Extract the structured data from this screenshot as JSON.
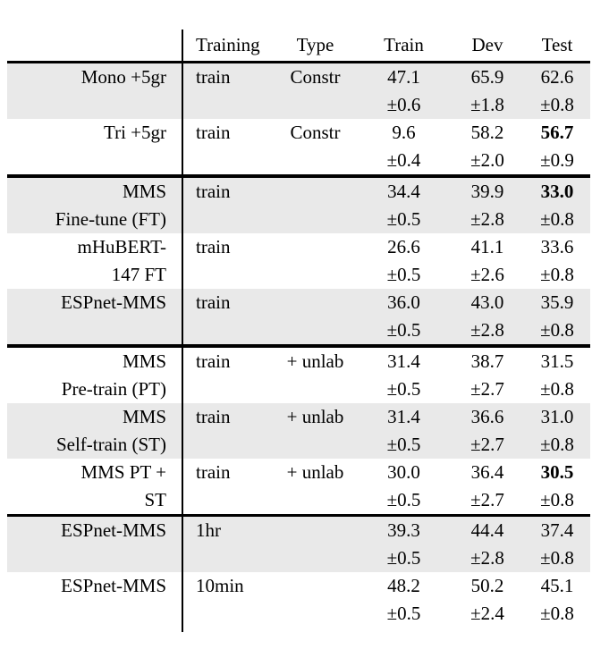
{
  "table": {
    "header": {
      "label": "",
      "training": "Training",
      "type": "Type",
      "train": "Train",
      "dev": "Dev",
      "test": "Test"
    },
    "sections": [
      {
        "rows": [
          {
            "label": [
              "Mono +5gr",
              ""
            ],
            "training": "train",
            "type": "Constr",
            "train": "47.1",
            "train_err": "±0.6",
            "dev": "65.9",
            "dev_err": "±1.8",
            "test": "62.6",
            "test_err": "±0.8",
            "bold": [],
            "shaded": true
          },
          {
            "label": [
              "Tri +5gr",
              ""
            ],
            "training": "train",
            "type": "Constr",
            "train": "9.6",
            "train_err": "±0.4",
            "dev": "58.2",
            "dev_err": "±2.0",
            "test": "56.7",
            "test_err": "±0.9",
            "bold": [
              "test"
            ],
            "shaded": false
          }
        ]
      },
      {
        "rows": [
          {
            "label": [
              "MMS",
              "Fine-tune (FT)"
            ],
            "training": "train",
            "type": "",
            "train": "34.4",
            "train_err": "±0.5",
            "dev": "39.9",
            "dev_err": "±2.8",
            "test": "33.0",
            "test_err": "±0.8",
            "bold": [
              "test"
            ],
            "shaded": true
          },
          {
            "label": [
              "mHuBERT-",
              "147 FT"
            ],
            "training": "train",
            "type": "",
            "train": "26.6",
            "train_err": "±0.5",
            "dev": "41.1",
            "dev_err": "±2.6",
            "test": "33.6",
            "test_err": "±0.8",
            "bold": [],
            "shaded": false
          },
          {
            "label": [
              "ESPnet-MMS",
              ""
            ],
            "training": "train",
            "type": "",
            "train": "36.0",
            "train_err": "±0.5",
            "dev": "43.0",
            "dev_err": "±2.8",
            "test": "35.9",
            "test_err": "±0.8",
            "bold": [],
            "shaded": true
          }
        ]
      },
      {
        "rows": [
          {
            "label": [
              "MMS",
              "Pre-train (PT)"
            ],
            "training": "train",
            "type": "+ unlab",
            "train": "31.4",
            "train_err": "±0.5",
            "dev": "38.7",
            "dev_err": "±2.7",
            "test": "31.5",
            "test_err": "±0.8",
            "bold": [],
            "shaded": false
          },
          {
            "label": [
              "MMS",
              "Self-train (ST)"
            ],
            "training": "train",
            "type": "+ unlab",
            "train": "31.4",
            "train_err": "±0.5",
            "dev": "36.6",
            "dev_err": "±2.7",
            "test": "31.0",
            "test_err": "±0.8",
            "bold": [],
            "shaded": true
          },
          {
            "label": [
              "MMS PT +",
              "ST"
            ],
            "training": "train",
            "type": "+ unlab",
            "train": "30.0",
            "train_err": "±0.5",
            "dev": "36.4",
            "dev_err": "±2.7",
            "test": "30.5",
            "test_err": "±0.8",
            "bold": [
              "test"
            ],
            "shaded": false
          }
        ]
      },
      {
        "rows": [
          {
            "label": [
              "ESPnet-MMS",
              ""
            ],
            "training": "1hr",
            "type": "",
            "train": "39.3",
            "train_err": "±0.5",
            "dev": "44.4",
            "dev_err": "±2.8",
            "test": "37.4",
            "test_err": "±0.8",
            "bold": [],
            "shaded": true
          },
          {
            "label": [
              "ESPnet-MMS",
              ""
            ],
            "training": "10min",
            "type": "",
            "train": "48.2",
            "train_err": "±0.5",
            "dev": "50.2",
            "dev_err": "±2.4",
            "test": "45.1",
            "test_err": "±0.8",
            "bold": [],
            "shaded": false
          }
        ]
      }
    ],
    "colors": {
      "shaded_row": "#e9e9e9",
      "rule": "#000000",
      "text": "#000000"
    }
  }
}
